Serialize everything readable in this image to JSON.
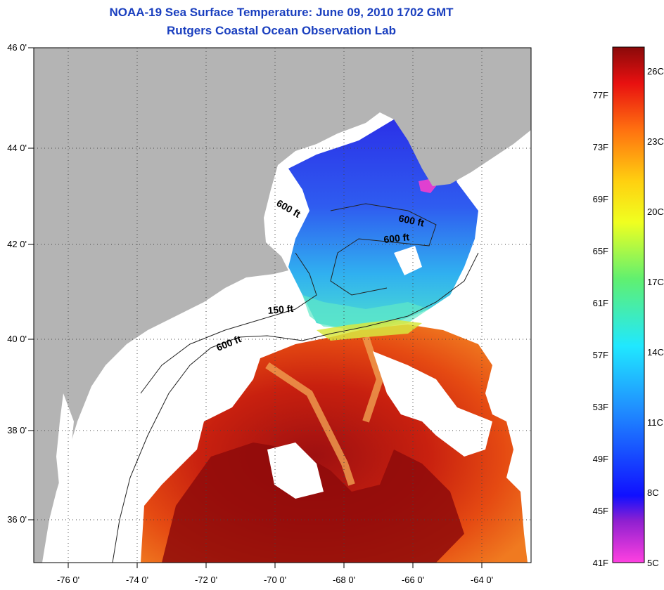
{
  "header": {
    "title_line1": "NOAA-19 Sea Surface Temperature:  June 09, 2010 1702 GMT",
    "title_line2": "Rutgers Coastal Ocean Observation Lab"
  },
  "map": {
    "lon_labels": [
      "-76 0'",
      "-74 0'",
      "-72 0'",
      "-70 0'",
      "-68 0'",
      "-66 0'",
      "-64 0'"
    ],
    "lat_labels": [
      "46 0'",
      "44 0'",
      "42 0'",
      "40 0'",
      "38 0'",
      "36 0'"
    ],
    "contour_labels": [
      "600 ft",
      "600 ft",
      "600 ft",
      "150 ft",
      "600 ft"
    ],
    "colors": {
      "land": "#b4b4b4",
      "cloud": "#ffffff",
      "frame": "#000000"
    }
  },
  "colorbar": {
    "fahrenheit_labels": [
      "77F",
      "73F",
      "69F",
      "65F",
      "61F",
      "57F",
      "53F",
      "49F",
      "45F",
      "41F"
    ],
    "celsius_labels": [
      "26C",
      "23C",
      "20C",
      "17C",
      "14C",
      "11C",
      "8C",
      "5C"
    ],
    "range_celsius": [
      5,
      28
    ]
  }
}
